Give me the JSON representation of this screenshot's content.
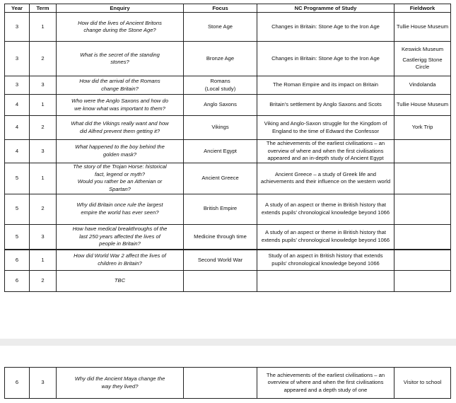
{
  "headers": {
    "year": "Year",
    "term": "Term",
    "enquiry": "Enquiry",
    "focus": "Focus",
    "nc": "NC Programme of Study",
    "fieldwork": "Fieldwork"
  },
  "rows": [
    {
      "year": "3",
      "term": "1",
      "enquiry": "How did the lives of Ancient Britons change during the Stone Age?",
      "focus": "Stone Age",
      "nc": "Changes in Britain: Stone Age to the Iron Age",
      "fieldwork": "Tullie House Museum"
    },
    {
      "year": "3",
      "term": "2",
      "enquiry": "What is the secret of the standing stones?",
      "focus": "Bronze Age",
      "nc": "Changes in Britain: Stone Age to the Iron Age",
      "fieldwork": "Keswick Museum",
      "fieldwork2": "Castlerigg Stone Circle"
    },
    {
      "year": "3",
      "term": "3",
      "enquiry": "How did the arrival of the Romans change Britain?",
      "focus": "Romans",
      "focus2": "(Local study)",
      "nc": "The Roman Empire and its impact on Britain",
      "fieldwork": "Vindolanda"
    },
    {
      "year": "4",
      "term": "1",
      "enquiry": "Who were the Anglo Saxons and how do we know what was important to them?",
      "focus": "Anglo Saxons",
      "nc": "Britain’s settlement by Anglo Saxons and Scots",
      "fieldwork": "Tullie House Museum"
    },
    {
      "year": "4",
      "term": "2",
      "enquiry": "What did the Vikings really want and how did Alfred prevent them getting it?",
      "focus": "Vikings",
      "nc": "Viking and Anglo-Saxon struggle for the Kingdom of England to the time of Edward the Confessor",
      "fieldwork": "York Trip"
    },
    {
      "year": "4",
      "term": "3",
      "enquiry": "What happened to the boy behind the golden mask?",
      "focus": "Ancient Egypt",
      "nc": "The achievements of the earliest civilisations – an overview of where and when the first civilisations appeared and an in-depth study of Ancient Egypt",
      "fieldwork": ""
    },
    {
      "year": "5",
      "term": "1",
      "enquiry": "The story of the Trojan Horse: historical fact, legend or myth?",
      "enquiry2": "Would you rather be an Athenian or Spartan?",
      "focus": "Ancient Greece",
      "nc": "Ancient Greece – a study of Greek life and achievements and their influence on the western world",
      "fieldwork": ""
    },
    {
      "year": "5",
      "term": "2",
      "enquiry": "Why did Britain once rule the largest empire the world has ever seen?",
      "focus": "British Empire",
      "nc": "A study of an aspect or theme in British history that extends pupils’ chronological knowledge beyond 1066",
      "fieldwork": ""
    },
    {
      "year": "5",
      "term": "3",
      "enquiry": "How have medical breakthroughs of the last 250 years affected the lives of people in Britain?",
      "focus": "Medicine through time",
      "nc": "A study of an aspect or theme in British history that extends pupils’ chronological knowledge beyond 1066",
      "fieldwork": ""
    },
    {
      "year": "6",
      "term": "1",
      "enquiry": "How did World War 2 affect the lives of children in Britain?",
      "focus": "Second World War",
      "nc": "Study of an aspect in British history that extends pupils’ chronological knowledge beyond 1066",
      "fieldwork": ""
    },
    {
      "year": "6",
      "term": "2",
      "enquiry": "TBC",
      "focus": "",
      "nc": "",
      "fieldwork": ""
    }
  ],
  "extra_row": {
    "year": "6",
    "term": "3",
    "enquiry": "Why did the Ancient Maya change the way they lived?",
    "focus": "",
    "nc": "The achievements of the earliest civilisations – an overview of where and when the first civilisations appeared and a depth study of one",
    "fieldwork": "Visitor to school"
  }
}
